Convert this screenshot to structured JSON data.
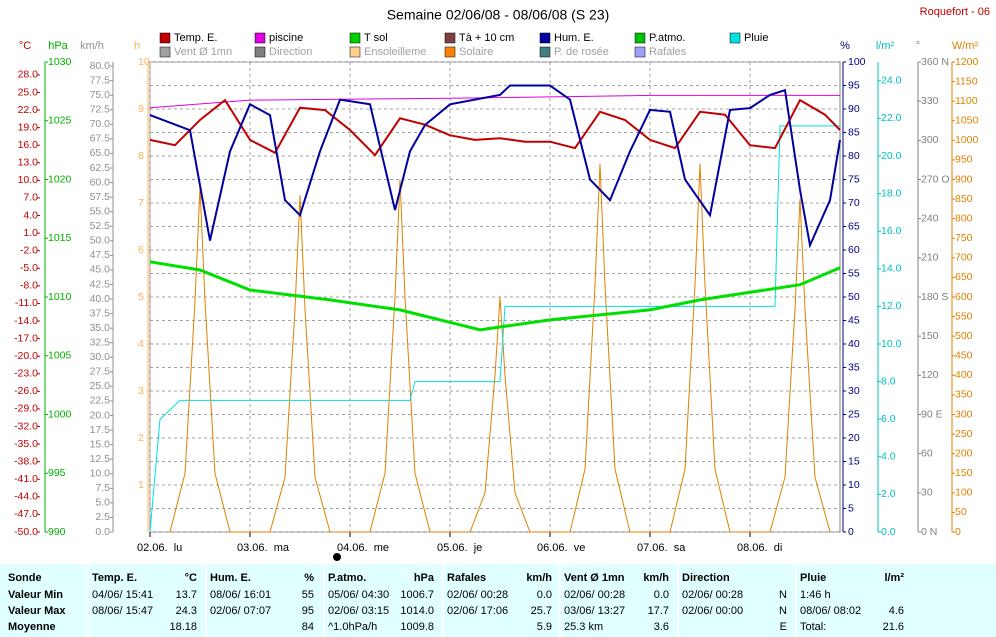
{
  "chart_data": {
    "type": "line",
    "title": "Semaine 02/06/08 - 08/06/08 (S 23)",
    "station": "Roquefort - 06",
    "legend": [
      {
        "name": "Temp. E.",
        "color": "#c00000"
      },
      {
        "name": "piscine",
        "color": "#e000e0"
      },
      {
        "name": "T sol",
        "color": "#00d000"
      },
      {
        "name": "Tà + 10 cm",
        "color": "#804040"
      },
      {
        "name": "Hum. E.",
        "color": "#0000a0"
      },
      {
        "name": "P.atmo.",
        "color": "#00c000"
      },
      {
        "name": "Pluie",
        "color": "#00e0e0"
      },
      {
        "name": "Vent Ø 1mn",
        "color": "#a0a0a0"
      },
      {
        "name": "Direction",
        "color": "#808080"
      },
      {
        "name": "Ensoleilleme",
        "color": "#ffd090"
      },
      {
        "name": "Solaire",
        "color": "#ff8000"
      },
      {
        "name": "P. de rosée",
        "color": "#408080"
      },
      {
        "name": "Rafales",
        "color": "#a0a0ff"
      }
    ],
    "xlim": [
      0,
      6.9
    ],
    "xticks": [
      {
        "value": 0,
        "label": "02.06.  lu"
      },
      {
        "value": 1,
        "label": "03.06.  ma"
      },
      {
        "value": 2,
        "label": "04.06.  me"
      },
      {
        "value": 3,
        "label": "05.06.  je"
      },
      {
        "value": 4,
        "label": "06.06.  ve"
      },
      {
        "value": 5,
        "label": "07.06.  sa"
      },
      {
        "value": 6,
        "label": "08.06.  di"
      }
    ],
    "axes": [
      {
        "label": "°C",
        "color": "#c00000",
        "ylim": [
          -50,
          30.2
        ],
        "yticks": [
          {
            "value": 28,
            "label": "28.0"
          },
          {
            "value": 25,
            "label": "25.0"
          },
          {
            "value": 22,
            "label": "22.0"
          },
          {
            "value": 19,
            "label": "19.0"
          },
          {
            "value": 16,
            "label": "16.0"
          },
          {
            "value": 13,
            "label": "13.0"
          },
          {
            "value": 10,
            "label": "10.0"
          },
          {
            "value": 7,
            "label": "7.0"
          },
          {
            "value": 4,
            "label": "4.0"
          },
          {
            "value": 1,
            "label": "1.0"
          },
          {
            "value": -2,
            "label": "-2.0"
          },
          {
            "value": -5,
            "label": "-5.0"
          },
          {
            "value": -8,
            "label": "-8.0"
          },
          {
            "value": -11,
            "label": "-11.0"
          },
          {
            "value": -14,
            "label": "-14.0"
          },
          {
            "value": -17,
            "label": "-17.0"
          },
          {
            "value": -20,
            "label": "-20.0"
          },
          {
            "value": -23,
            "label": "-23.0"
          },
          {
            "value": -26,
            "label": "-26.0"
          },
          {
            "value": -29,
            "label": "-29.0"
          },
          {
            "value": -32,
            "label": "-32.0"
          },
          {
            "value": -35,
            "label": "-35.0"
          },
          {
            "value": -38,
            "label": "-38.0"
          },
          {
            "value": -41,
            "label": "-41.0"
          },
          {
            "value": -44,
            "label": "-44.0"
          },
          {
            "value": -47,
            "label": "-47.0"
          },
          {
            "value": -50,
            "label": "-50.0"
          }
        ]
      },
      {
        "label": "hPa",
        "color": "#00b000",
        "ylim": [
          990,
          1030
        ],
        "yticks": [
          1030,
          1025,
          1020,
          1015,
          1010,
          1005,
          1000,
          995,
          990
        ]
      },
      {
        "label": "km/h",
        "color": "#909090",
        "ylim": [
          0,
          80.7
        ],
        "yticks": [
          {
            "value": 80,
            "label": "80.0"
          },
          {
            "value": 77.5,
            "label": "77.5"
          },
          {
            "value": 75,
            "label": "75.0"
          },
          {
            "value": 72.5,
            "label": "72.5"
          },
          {
            "value": 70,
            "label": "70.0"
          },
          {
            "value": 67.5,
            "label": "67.5"
          },
          {
            "value": 65,
            "label": "65.0"
          },
          {
            "value": 62.5,
            "label": "62.5"
          },
          {
            "value": 60,
            "label": "60.0"
          },
          {
            "value": 57.5,
            "label": "57.5"
          },
          {
            "value": 55,
            "label": "55.0"
          },
          {
            "value": 52.5,
            "label": "52.5"
          },
          {
            "value": 50,
            "label": "50.0"
          },
          {
            "value": 47.5,
            "label": "47.5"
          },
          {
            "value": 45,
            "label": "45.0"
          },
          {
            "value": 42.5,
            "label": "42.5"
          },
          {
            "value": 40,
            "label": "40.0"
          },
          {
            "value": 37.5,
            "label": "37.5"
          },
          {
            "value": 35,
            "label": "35.0"
          },
          {
            "value": 32.5,
            "label": "32.5"
          },
          {
            "value": 30,
            "label": "30.0"
          },
          {
            "value": 27.5,
            "label": "27.5"
          },
          {
            "value": 25,
            "label": "25.0"
          },
          {
            "value": 22.5,
            "label": "22.5"
          },
          {
            "value": 20,
            "label": "20.0"
          },
          {
            "value": 17.5,
            "label": "17.5"
          },
          {
            "value": 15,
            "label": "15.0"
          },
          {
            "value": 12.5,
            "label": "12.5"
          },
          {
            "value": 10,
            "label": "10.0"
          },
          {
            "value": 7.5,
            "label": "7.5"
          },
          {
            "value": 5,
            "label": "5.0"
          },
          {
            "value": 2.5,
            "label": "2.5"
          },
          {
            "value": 0,
            "label": "0.0"
          }
        ]
      },
      {
        "label": "h",
        "color": "#ffb050",
        "ylim": [
          0,
          10
        ],
        "yticks": [
          10,
          9,
          8,
          7,
          6,
          5,
          4,
          3,
          2,
          1
        ]
      },
      {
        "label": "%",
        "color": "#000080",
        "ylim": [
          0,
          100
        ],
        "yticks": [
          100,
          95,
          90,
          85,
          80,
          75,
          70,
          65,
          60,
          55,
          50,
          45,
          40,
          35,
          30,
          25,
          20,
          15,
          10,
          5,
          0
        ],
        "grid": true
      },
      {
        "label": "l/m²",
        "color": "#00c0c0",
        "ylim": [
          0,
          25
        ],
        "yticks": [
          {
            "value": 24,
            "label": "24.0"
          },
          {
            "value": 22,
            "label": "22.0"
          },
          {
            "value": 20,
            "label": "20.0"
          },
          {
            "value": 18,
            "label": "18.0"
          },
          {
            "value": 16,
            "label": "16.0"
          },
          {
            "value": 14,
            "label": "14.0"
          },
          {
            "value": 12,
            "label": "12.0"
          },
          {
            "value": 10,
            "label": "10.0"
          },
          {
            "value": 8,
            "label": "8.0"
          },
          {
            "value": 6,
            "label": "6.0"
          },
          {
            "value": 4,
            "label": "4.0"
          },
          {
            "value": 2,
            "label": "2.0"
          },
          {
            "value": 0,
            "label": "0.0"
          }
        ]
      },
      {
        "label": "°",
        "color": "#808080",
        "ylim": [
          0,
          360
        ],
        "yticks": [
          {
            "value": 360,
            "label": "360 N"
          },
          330,
          300,
          {
            "value": 270,
            "label": "270 O"
          },
          240,
          210,
          {
            "value": 180,
            "label": "180 S"
          },
          150,
          120,
          {
            "value": 90,
            "label": "90 E"
          },
          60,
          30,
          {
            "value": 0,
            "label": "0 N"
          }
        ]
      },
      {
        "label": "W/m²",
        "color": "#e08000",
        "ylim": [
          0,
          1200
        ],
        "yticks": [
          1200,
          1150,
          1100,
          1050,
          1000,
          950,
          900,
          850,
          800,
          750,
          700,
          650,
          600,
          550,
          500,
          450,
          400,
          350,
          300,
          250,
          200,
          150,
          100,
          50,
          0
        ]
      }
    ],
    "series": [
      {
        "name": "Solaire",
        "color": "#e08000",
        "axis": 7,
        "width": 1,
        "x": [
          0.2,
          0.35,
          0.45,
          0.5,
          0.55,
          0.65,
          0.8,
          1.2,
          1.35,
          1.45,
          1.5,
          1.55,
          1.65,
          1.8,
          2.2,
          2.35,
          2.45,
          2.5,
          2.55,
          2.65,
          2.8,
          3.2,
          3.35,
          3.45,
          3.5,
          3.55,
          3.65,
          3.8,
          4.2,
          4.35,
          4.45,
          4.5,
          4.55,
          4.65,
          4.8,
          5.2,
          5.35,
          5.45,
          5.5,
          5.55,
          5.65,
          5.8,
          6.2,
          6.35,
          6.45,
          6.5,
          6.55,
          6.65,
          6.8
        ],
        "values": [
          0,
          150,
          590,
          880,
          590,
          150,
          0,
          0,
          140,
          570,
          860,
          570,
          140,
          0,
          0,
          150,
          600,
          900,
          600,
          150,
          0,
          0,
          100,
          400,
          600,
          400,
          100,
          0,
          0,
          160,
          630,
          940,
          630,
          160,
          0,
          0,
          160,
          630,
          940,
          630,
          160,
          0,
          0,
          140,
          570,
          850,
          570,
          140,
          0
        ]
      },
      {
        "name": "Pluie",
        "color": "#00e0e0",
        "axis": 5,
        "width": 1,
        "x": [
          0,
          0.1,
          0.3,
          2.6,
          2.65,
          3.5,
          3.55,
          6.25,
          6.3,
          6.9
        ],
        "values": [
          0,
          6,
          7,
          7,
          8,
          8,
          12,
          12,
          21.6,
          21.6
        ]
      },
      {
        "name": "T sol",
        "color": "#00e000",
        "axis": 0,
        "width": 3,
        "x": [
          0,
          0.5,
          1,
          1.8,
          2.5,
          3.3,
          4,
          5,
          5.5,
          6.5,
          6.9
        ],
        "values": [
          -3.9,
          -5.3,
          -8.7,
          -10.4,
          -12.1,
          -15.5,
          -13.8,
          -12.1,
          -10.4,
          -7.8,
          -4.9
        ]
      },
      {
        "name": "piscine",
        "color": "#e000e0",
        "axis": 0,
        "width": 1,
        "x": [
          0,
          1,
          3,
          5,
          6.9
        ],
        "values": [
          22.4,
          23.7,
          24,
          24.5,
          24.5
        ]
      },
      {
        "name": "Temp. E.",
        "color": "#c00000",
        "axis": 0,
        "width": 2,
        "x": [
          0,
          0.25,
          0.5,
          0.75,
          1,
          1.25,
          1.5,
          1.75,
          2,
          2.25,
          2.5,
          2.75,
          3,
          3.25,
          3.5,
          3.75,
          4,
          4.25,
          4.5,
          4.75,
          5,
          5.25,
          5.5,
          5.75,
          6,
          6.25,
          6.5,
          6.75,
          6.9
        ],
        "values": [
          16.9,
          16,
          20.3,
          23.7,
          16.9,
          14.7,
          22.4,
          22,
          18.6,
          14.3,
          20.6,
          19.5,
          17.7,
          16.9,
          17.2,
          16.6,
          16.6,
          15.5,
          21.7,
          20.3,
          16.9,
          15.5,
          21.7,
          21.2,
          16,
          15.5,
          23.7,
          21.2,
          18.6
        ]
      },
      {
        "name": "Hum. E.",
        "color": "#0000a0",
        "axis": 4,
        "width": 2,
        "x": [
          0,
          0.4,
          0.6,
          0.8,
          1,
          1.2,
          1.35,
          1.5,
          1.7,
          1.9,
          2.2,
          2.45,
          2.6,
          2.75,
          3,
          3.5,
          3.6,
          4,
          4.2,
          4.4,
          4.6,
          4.8,
          5,
          5.2,
          5.35,
          5.6,
          5.8,
          6,
          6.2,
          6.35,
          6.5,
          6.6,
          6.8,
          6.9
        ],
        "values": [
          88.7,
          85.5,
          62,
          81,
          91,
          88.7,
          70.6,
          67.4,
          81,
          92,
          91,
          68.5,
          81,
          86.6,
          91,
          93,
          95,
          95,
          92,
          75,
          70.6,
          81,
          89.8,
          89.4,
          75,
          67.4,
          89.8,
          90.2,
          93,
          94,
          72.8,
          61,
          70.6,
          83.4
        ]
      }
    ]
  },
  "table": {
    "columns": [
      {
        "title": "Sonde",
        "rows": [
          {
            "left": "Valeur Min"
          },
          {
            "left": "Valeur Max"
          },
          {
            "left": "Moyenne"
          }
        ]
      },
      {
        "title": "Temp. E.",
        "unit": "°C",
        "rows": [
          {
            "left": "04/06/ 15:41",
            "right": "13.7"
          },
          {
            "left": "08/06/ 15:47",
            "right": "24.3"
          },
          {
            "right": "18.18"
          }
        ]
      },
      {
        "title": "Hum. E.",
        "unit": "%",
        "rows": [
          {
            "left": "08/06/ 16:01",
            "right": "55"
          },
          {
            "left": "02/06/ 07:07",
            "right": "95"
          },
          {
            "right": "84"
          }
        ]
      },
      {
        "title": "P.atmo.",
        "unit": "hPa",
        "rows": [
          {
            "left": "05/06/ 04:30",
            "right": "1006.7"
          },
          {
            "left": "02/06/ 03:15",
            "right": "1014.0"
          },
          {
            "left": "^1.0hPa/h",
            "right": "1009.8"
          }
        ]
      },
      {
        "title": "Rafales",
        "unit": "km/h",
        "rows": [
          {
            "left": "02/06/ 00:28",
            "right": "0.0"
          },
          {
            "left": "02/06/ 17:06",
            "right": "25.7"
          },
          {
            "right": "5.9"
          }
        ]
      },
      {
        "title": "Vent Ø 1mn",
        "unit": "km/h",
        "rows": [
          {
            "left": "02/06/ 00:28",
            "right": "0.0"
          },
          {
            "left": "03/06/ 13:27",
            "right": "17.7"
          },
          {
            "left": "25.3 km",
            "right": "3.6"
          }
        ]
      },
      {
        "title": "Direction",
        "rows": [
          {
            "left": "02/06/ 00:28",
            "right": "N"
          },
          {
            "left": "02/06/ 00:00",
            "right": "N"
          },
          {
            "right": "E"
          }
        ]
      },
      {
        "title": "Pluie",
        "unit": "l/m²",
        "rows": [
          {
            "left": "1:46 h"
          },
          {
            "left": "08/06/ 08:02",
            "right": "4.6"
          },
          {
            "left": "Total:",
            "right": "21.6"
          }
        ]
      }
    ]
  }
}
